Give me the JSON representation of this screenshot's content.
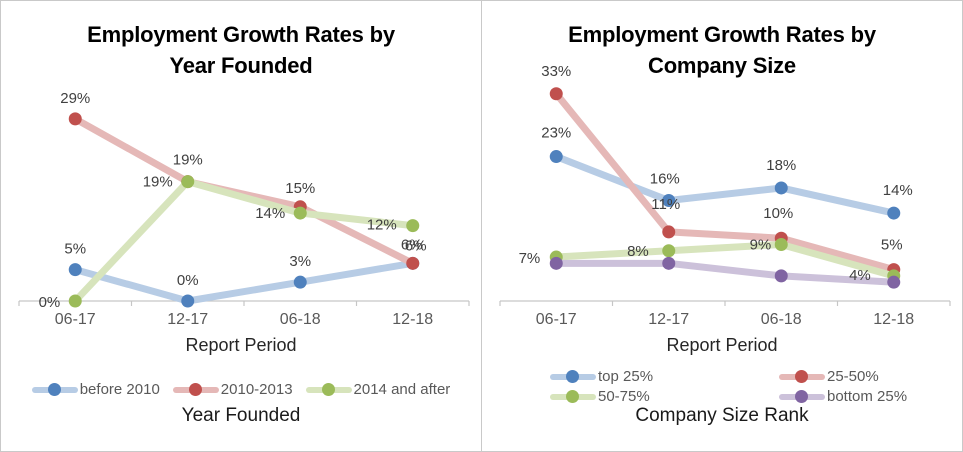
{
  "figure": {
    "border_color": "#c9c9c9",
    "background": "#ffffff"
  },
  "chart_data": [
    {
      "type": "line",
      "title": "Employment Growth Rates by Year Founded",
      "title_lines": [
        "Employment Growth Rates by",
        "Year Founded"
      ],
      "xlabel": "Report Period",
      "legend_title": "Year Founded",
      "legend_position": "bottom",
      "legend_layout": "row",
      "gridlines": false,
      "categories": [
        "06-17",
        "12-17",
        "06-18",
        "12-18"
      ],
      "ylim": [
        0,
        35
      ],
      "axis_color": "#c6c6c6",
      "series": [
        {
          "name": "before 2010",
          "values": [
            5,
            0,
            3,
            6
          ],
          "marker_color": "#4F81BD",
          "line_color": "#B7CCE5",
          "labels": [
            {
              "text": "5%",
              "dx": 0,
              "dy": -16,
              "anchor": "middle"
            },
            {
              "text": "0%",
              "dx": 0,
              "dy": -16,
              "anchor": "middle"
            },
            {
              "text": "3%",
              "dx": 0,
              "dy": -16,
              "anchor": "middle"
            },
            {
              "text": "6%",
              "dx": 3,
              "dy": -13,
              "anchor": "middle"
            }
          ]
        },
        {
          "name": "2010-2013",
          "values": [
            29,
            19,
            15,
            6
          ],
          "marker_color": "#C0504D",
          "line_color": "#E5B8B7",
          "labels": [
            {
              "text": "29%",
              "dx": 0,
              "dy": -16,
              "anchor": "middle"
            },
            {
              "text": "19%",
              "dx": -15,
              "dy": 5,
              "anchor": "end"
            },
            {
              "text": "15%",
              "dx": 0,
              "dy": -14,
              "anchor": "middle"
            },
            {
              "text": "6%",
              "dx": -1,
              "dy": -14,
              "anchor": "middle"
            }
          ]
        },
        {
          "name": "2014 and after",
          "values": [
            0,
            19,
            14,
            12
          ],
          "marker_color": "#9BBB59",
          "line_color": "#D7E4BC",
          "labels": [
            {
              "text": "0%",
              "dx": -15,
              "dy": 6,
              "anchor": "end"
            },
            {
              "text": "19%",
              "dx": 0,
              "dy": -17,
              "anchor": "middle"
            },
            {
              "text": "14%",
              "dx": -15,
              "dy": 5,
              "anchor": "end"
            },
            {
              "text": "12%",
              "dx": -16,
              "dy": 4,
              "anchor": "end"
            }
          ]
        }
      ]
    },
    {
      "type": "line",
      "title": "Employment Growth Rates by Company Size",
      "title_lines": [
        "Employment Growth Rates by",
        "Company Size"
      ],
      "xlabel": "Report Period",
      "legend_title": "Company Size Rank",
      "legend_position": "bottom",
      "legend_layout": "grid",
      "gridlines": false,
      "categories": [
        "06-17",
        "12-17",
        "06-18",
        "12-18"
      ],
      "ylim": [
        0,
        35
      ],
      "axis_color": "#c6c6c6",
      "series": [
        {
          "name": "top 25%",
          "values": [
            23,
            16,
            18,
            14
          ],
          "marker_color": "#4F81BD",
          "line_color": "#B7CCE5",
          "labels": [
            {
              "text": "23%",
              "dx": 0,
              "dy": -19,
              "anchor": "middle"
            },
            {
              "text": "16%",
              "dx": -4,
              "dy": -17,
              "anchor": "middle"
            },
            {
              "text": "18%",
              "dx": 0,
              "dy": -18,
              "anchor": "middle"
            },
            {
              "text": "14%",
              "dx": 4,
              "dy": -18,
              "anchor": "middle"
            }
          ]
        },
        {
          "name": "25-50%",
          "values": [
            33,
            11,
            10,
            5
          ],
          "marker_color": "#C0504D",
          "line_color": "#E5B8B7",
          "labels": [
            {
              "text": "33%",
              "dx": 0,
              "dy": -18,
              "anchor": "middle"
            },
            {
              "text": "11%",
              "dx": -3,
              "dy": -23,
              "anchor": "middle"
            },
            {
              "text": "10%",
              "dx": -3,
              "dy": -20,
              "anchor": "middle"
            },
            {
              "text": "5%",
              "dx": -2,
              "dy": -20,
              "anchor": "middle"
            }
          ]
        },
        {
          "name": "50-75%",
          "values": [
            7,
            8,
            9,
            4
          ],
          "marker_color": "#9BBB59",
          "line_color": "#D7E4BC",
          "labels": [
            {
              "text": "7%",
              "dx": -16,
              "dy": 6,
              "anchor": "end"
            },
            {
              "text": "8%",
              "dx": -20,
              "dy": 5,
              "anchor": "end"
            },
            {
              "text": "9%",
              "dx": -10,
              "dy": 5,
              "anchor": "end"
            },
            {
              "text": "4%",
              "dx": -23,
              "dy": 4,
              "anchor": "end"
            }
          ]
        },
        {
          "name": "bottom 25%",
          "values": [
            6,
            6,
            4,
            3
          ],
          "marker_color": "#8064A2",
          "line_color": "#CCC1DA",
          "labels": [
            null,
            null,
            null,
            null
          ]
        }
      ]
    }
  ]
}
